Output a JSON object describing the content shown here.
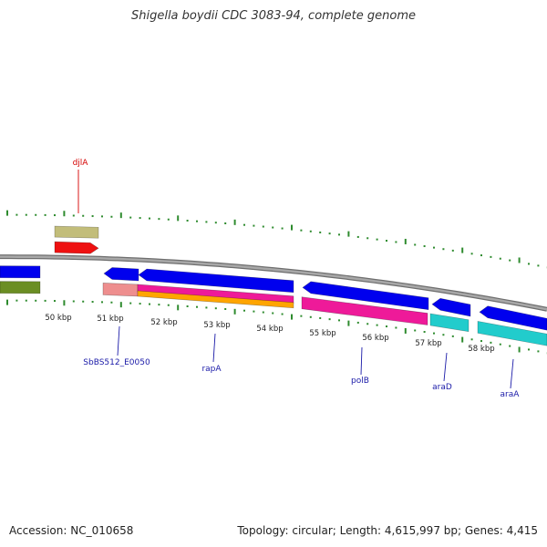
{
  "title": "Shigella boydii CDC 3083-94, complete genome",
  "footer": {
    "accession": "Accession: NC_010658",
    "stats": "Topology: circular; Length: 4,615,997 bp; Genes: 4,415"
  },
  "colors": {
    "backbone": "#8c8c8c",
    "tick": "#2e8b2e",
    "gene_blue": "#0000ee",
    "gene_label_blue": "#1a1aa8",
    "gene_label_red": "#d40000"
  },
  "scale": {
    "labels": [
      "50 kbp",
      "51 kbp",
      "52 kbp",
      "53 kbp",
      "54 kbp",
      "55 kbp",
      "56 kbp",
      "57 kbp",
      "58 kbp"
    ]
  },
  "gene_labels": [
    {
      "name": "djlA",
      "color": "#d40000"
    },
    {
      "name": "SbBS512_E0050",
      "color": "#1a1aa8"
    },
    {
      "name": "rapA",
      "color": "#1a1aa8"
    },
    {
      "name": "polB",
      "color": "#1a1aa8"
    },
    {
      "name": "araD",
      "color": "#1a1aa8"
    },
    {
      "name": "araA",
      "color": "#1a1aa8"
    }
  ],
  "feature_colors": {
    "khaki": "#c2bd7a",
    "red": "#ee1111",
    "olive": "#6b8e23",
    "salmon": "#ee8e8e",
    "magenta": "#ee1a99",
    "orange": "#ffa500",
    "cyan": "#22cccc"
  }
}
